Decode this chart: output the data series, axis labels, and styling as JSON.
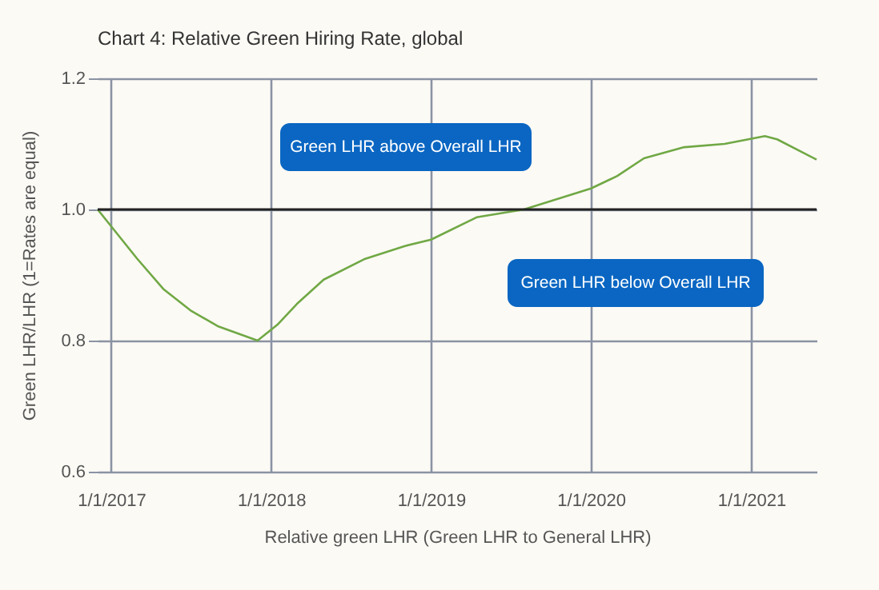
{
  "chart_data": {
    "type": "line",
    "title": "Chart 4: Relative Green Hiring Rate, global",
    "xlabel": "Relative green LHR (Green LHR to General LHR)",
    "ylabel": "Green LHR/LHR (1=Rates are equal)",
    "x": [
      "2016-12-01",
      "2017-03-01",
      "2017-05-01",
      "2017-07-01",
      "2017-09-01",
      "2017-12-01",
      "2018-01-15",
      "2018-03-01",
      "2018-05-01",
      "2018-08-01",
      "2018-11-01",
      "2019-01-01",
      "2019-04-15",
      "2019-08-01",
      "2020-01-01",
      "2020-03-01",
      "2020-05-01",
      "2020-08-01",
      "2020-11-01",
      "2021-02-01",
      "2021-03-01",
      "2021-05-30"
    ],
    "series": [
      {
        "color": "#70a845",
        "values": [
          1.0,
          0.925,
          0.878,
          0.846,
          0.822,
          0.8,
          0.824,
          0.856,
          0.893,
          0.924,
          0.944,
          0.954,
          0.988,
          1.0,
          1.032,
          1.051,
          1.078,
          1.095,
          1.1,
          1.112,
          1.107,
          1.076
        ]
      }
    ],
    "xlim": [
      "2016-12-01",
      "2021-05-30"
    ],
    "xticks": [
      {
        "value": "2017-01-01",
        "label": "1/1/2017"
      },
      {
        "value": "2018-01-01",
        "label": "1/1/2018"
      },
      {
        "value": "2019-01-01",
        "label": "1/1/2019"
      },
      {
        "value": "2020-01-01",
        "label": "1/1/2020"
      },
      {
        "value": "2021-01-01",
        "label": "1/1/2021"
      }
    ],
    "ylim": [
      0.6,
      1.2
    ],
    "yticks": [
      0.6,
      0.8,
      {
        "value": 1.0,
        "label": "1.0"
      },
      1.2
    ],
    "ref_lines": [
      {
        "axis": "y",
        "value": 1.0,
        "color": "#222222"
      }
    ],
    "annotations": [
      "Green LHR above Overall LHR",
      "Green LHR below Overall LHR"
    ],
    "grid": true,
    "marker": "none",
    "line_style": "solid"
  }
}
